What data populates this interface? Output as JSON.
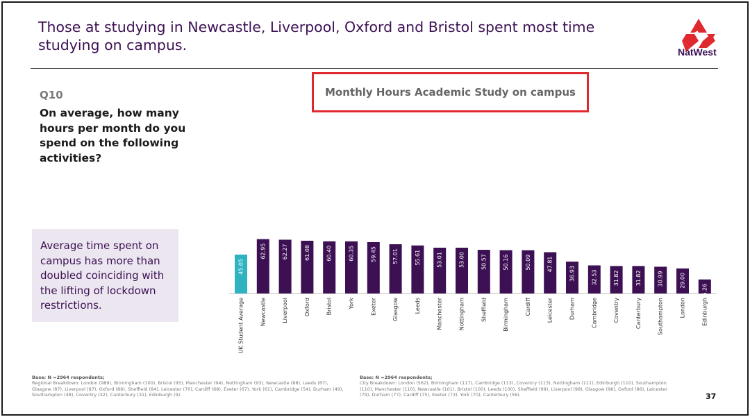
{
  "slide": {
    "title": "Those at studying in Newcastle, Liverpool, Oxford and Bristol spent most time studying on campus.",
    "brand": "NatWest",
    "question_number": "Q10",
    "question_text": "On average, how many hours per month do you spend on the following activities?",
    "callout": "Average time spent on campus has more than doubled coinciding with the lifting of lockdown restrictions.",
    "page_number": "37",
    "footnote_left": {
      "heading": "Base: N =2964 respondents;",
      "body": "Regional Breakdown: London (989), Birmingham (100), Bristol (95), Manchester (94), Nottingham (93), Newcastle (88), Leeds (87), Glasgow (87), Liverpool (87), Oxford (86), Sheffield (84), Leicester (70), Cardiff (68), Exeter (67), York (61), Cambridge (54), Durham (49), Southampton (48), Coventry (32), Canterbury (31), Edinburgh (9)."
    },
    "footnote_right": {
      "heading": "Base: N =2964 respondents;",
      "body": "City Breakdown: London (562), Birmingham (117), Cambridge (113), Coventry (113), Nottingham (111), Edinburgh (110), Southampton (110), Manchester (110), Newcastle (101), Bristol (100), Leeds (100), Sheffield (99), Liverpool (98), Glasgow (96), Oxford (86), Leicester (79), Durham (77), Cardiff (75), Exeter (73), York (70), Canterbury (56)."
    }
  },
  "colors": {
    "title": "#3c1053",
    "bar": "#3c1053",
    "highlight_bar": "#2fb3c1",
    "title_box_border": "#e0282f",
    "logo_red": "#e0282f"
  },
  "chart_data": {
    "type": "bar",
    "title": "Monthly Hours Academic Study on campus",
    "categories": [
      "UK Student Average",
      "Newcastle",
      "Liverpool",
      "Oxford",
      "Bristol",
      "York",
      "Exeter",
      "Glasgow",
      "Leeds",
      "Manchester",
      "Nottingham",
      "Sheffield",
      "Birmingham",
      "Cardiff",
      "Leicester",
      "Durham",
      "Cambridge",
      "Coventry",
      "Canterbury",
      "Southampton",
      "London",
      "Edinburgh"
    ],
    "values": [
      45.05,
      62.95,
      62.27,
      61.08,
      60.4,
      60.35,
      59.45,
      57.01,
      55.61,
      53.01,
      53.0,
      50.57,
      50.16,
      50.09,
      47.81,
      36.93,
      32.53,
      31.82,
      31.82,
      30.99,
      29.0,
      16.26
    ],
    "data_labels": [
      "45.05",
      "62.95",
      "62.27",
      "61.08",
      "60.40",
      "60.35",
      "59.45",
      "57.01",
      "55.61",
      "53.01",
      "53.00",
      "50.57",
      "50.16",
      "50.09",
      "47.81",
      "36.93",
      "32.53",
      "31.82",
      "31.82",
      "30.99",
      "29.00",
      "16.26"
    ],
    "highlight_index": 0,
    "ylim": [
      0,
      70
    ],
    "grid": false,
    "legend": "none"
  }
}
